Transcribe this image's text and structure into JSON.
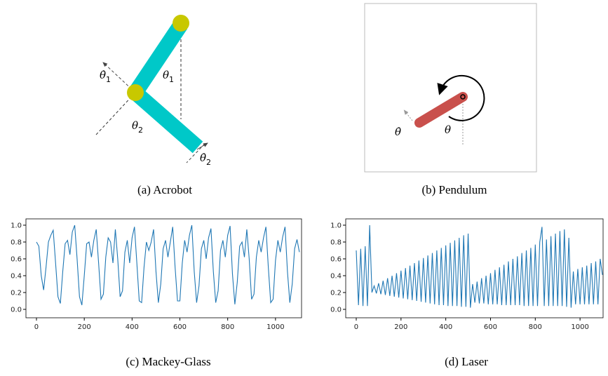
{
  "diagrams": {
    "acrobot": {
      "caption": "(a) Acrobot",
      "theta_dot_1": {
        "symbol": "θ̇",
        "sub": "1"
      },
      "theta_1": {
        "symbol": "θ",
        "sub": "1"
      },
      "theta_2": {
        "symbol": "θ",
        "sub": "2"
      },
      "theta_dot_2": {
        "symbol": "θ̇",
        "sub": "2"
      }
    },
    "pendulum": {
      "caption": "(b) Pendulum",
      "theta_dot": "θ̇",
      "theta": "θ"
    }
  },
  "chart_data": [
    {
      "type": "line",
      "caption": "(c) Mackey-Glass",
      "color": "#1f77b4",
      "x": [
        0,
        10,
        20,
        30,
        40,
        50,
        60,
        70,
        80,
        90,
        100,
        110,
        120,
        130,
        140,
        150,
        160,
        170,
        180,
        190,
        200,
        210,
        220,
        230,
        240,
        250,
        260,
        270,
        280,
        290,
        300,
        310,
        320,
        330,
        340,
        350,
        360,
        370,
        380,
        390,
        400,
        410,
        420,
        430,
        440,
        450,
        460,
        470,
        480,
        490,
        500,
        510,
        520,
        530,
        540,
        550,
        560,
        570,
        580,
        590,
        600,
        610,
        620,
        630,
        640,
        650,
        660,
        670,
        680,
        690,
        700,
        710,
        720,
        730,
        740,
        750,
        760,
        770,
        780,
        790,
        800,
        810,
        820,
        830,
        840,
        850,
        860,
        870,
        880,
        890,
        900,
        910,
        920,
        930,
        940,
        950,
        960,
        970,
        980,
        990,
        1000,
        1010,
        1020,
        1030,
        1040,
        1050,
        1060,
        1070,
        1080,
        1090,
        1100
      ],
      "values": [
        0.8,
        0.75,
        0.4,
        0.23,
        0.5,
        0.8,
        0.88,
        0.94,
        0.55,
        0.15,
        0.07,
        0.45,
        0.78,
        0.82,
        0.65,
        0.92,
        1.0,
        0.6,
        0.15,
        0.05,
        0.4,
        0.78,
        0.8,
        0.62,
        0.82,
        0.95,
        0.55,
        0.12,
        0.18,
        0.62,
        0.85,
        0.8,
        0.55,
        0.95,
        0.6,
        0.15,
        0.22,
        0.68,
        0.82,
        0.55,
        0.85,
        0.98,
        0.55,
        0.1,
        0.08,
        0.5,
        0.8,
        0.7,
        0.8,
        0.95,
        0.45,
        0.08,
        0.3,
        0.72,
        0.82,
        0.62,
        0.8,
        0.98,
        0.5,
        0.1,
        0.1,
        0.55,
        0.82,
        0.68,
        0.88,
        1.0,
        0.45,
        0.08,
        0.28,
        0.72,
        0.82,
        0.6,
        0.85,
        0.96,
        0.45,
        0.08,
        0.22,
        0.7,
        0.82,
        0.62,
        0.88,
        0.99,
        0.42,
        0.06,
        0.32,
        0.75,
        0.8,
        0.62,
        0.95,
        0.6,
        0.12,
        0.18,
        0.62,
        0.82,
        0.68,
        0.85,
        0.98,
        0.5,
        0.08,
        0.12,
        0.58,
        0.82,
        0.68,
        0.86,
        0.98,
        0.45,
        0.08,
        0.3,
        0.72,
        0.83,
        0.68
      ],
      "xlim": [
        -44,
        1109
      ],
      "xticks": [
        0,
        200,
        400,
        600,
        800,
        1000
      ],
      "ylim": [
        -0.1,
        1.075
      ],
      "yticks": [
        {
          "value": 0,
          "label": "0.0"
        },
        0.2,
        0.4,
        0.6,
        0.8,
        {
          "value": 1,
          "label": "1.0"
        }
      ]
    },
    {
      "type": "line",
      "caption": "(d) Laser",
      "color": "#1f77b4",
      "x": [
        0,
        10,
        20,
        30,
        40,
        50,
        60,
        70,
        80,
        90,
        100,
        110,
        120,
        130,
        140,
        150,
        160,
        170,
        180,
        190,
        200,
        210,
        220,
        230,
        240,
        250,
        260,
        270,
        280,
        290,
        300,
        310,
        320,
        330,
        340,
        350,
        360,
        370,
        380,
        390,
        400,
        410,
        420,
        430,
        440,
        450,
        460,
        470,
        480,
        490,
        500,
        510,
        520,
        530,
        540,
        550,
        560,
        570,
        580,
        590,
        600,
        610,
        620,
        630,
        640,
        650,
        660,
        670,
        680,
        690,
        700,
        710,
        720,
        730,
        740,
        750,
        760,
        770,
        780,
        790,
        800,
        810,
        820,
        830,
        840,
        850,
        860,
        870,
        880,
        890,
        900,
        910,
        920,
        930,
        940,
        950,
        960,
        970,
        980,
        990,
        1000,
        1010,
        1020,
        1030,
        1040,
        1050,
        1060,
        1070,
        1080,
        1090,
        1100
      ],
      "values": [
        0.7,
        0.05,
        0.72,
        0.04,
        0.75,
        0.04,
        1.0,
        0.2,
        0.28,
        0.19,
        0.31,
        0.18,
        0.34,
        0.17,
        0.37,
        0.16,
        0.4,
        0.15,
        0.43,
        0.14,
        0.46,
        0.13,
        0.49,
        0.12,
        0.52,
        0.11,
        0.55,
        0.1,
        0.58,
        0.09,
        0.61,
        0.08,
        0.64,
        0.07,
        0.67,
        0.06,
        0.7,
        0.05,
        0.73,
        0.05,
        0.76,
        0.04,
        0.79,
        0.04,
        0.82,
        0.04,
        0.85,
        0.03,
        0.88,
        0.03,
        0.9,
        0.02,
        0.3,
        0.08,
        0.33,
        0.07,
        0.37,
        0.07,
        0.4,
        0.06,
        0.43,
        0.06,
        0.47,
        0.06,
        0.5,
        0.05,
        0.53,
        0.05,
        0.57,
        0.05,
        0.6,
        0.05,
        0.63,
        0.05,
        0.67,
        0.04,
        0.7,
        0.04,
        0.73,
        0.04,
        0.77,
        0.04,
        0.8,
        0.98,
        0.04,
        0.83,
        0.04,
        0.87,
        0.04,
        0.9,
        0.04,
        0.93,
        0.04,
        0.95,
        0.03,
        0.85,
        0.02,
        0.45,
        0.06,
        0.48,
        0.06,
        0.5,
        0.06,
        0.52,
        0.06,
        0.55,
        0.06,
        0.57,
        0.06,
        0.6,
        0.41
      ],
      "xlim": [
        -47,
        1103
      ],
      "xticks": [
        0,
        200,
        400,
        600,
        800,
        1000
      ],
      "ylim": [
        -0.1,
        1.075
      ],
      "yticks": [
        {
          "value": 0,
          "label": "0.0"
        },
        0.2,
        0.4,
        0.6,
        0.8,
        {
          "value": 1,
          "label": "1.0"
        }
      ]
    }
  ]
}
